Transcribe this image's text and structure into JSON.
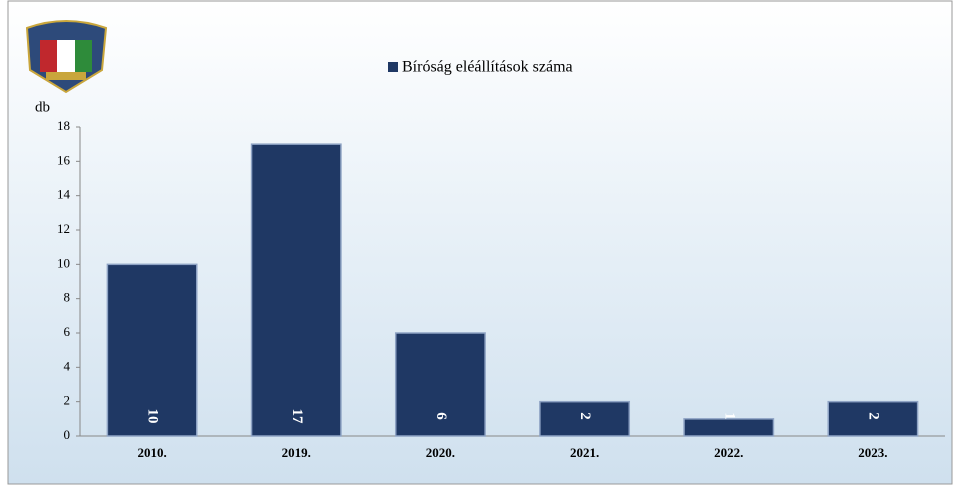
{
  "chart_data": {
    "type": "bar",
    "legend": "Bíróság eléállítások száma",
    "y_label": "db",
    "categories": [
      "2010.",
      "2019.",
      "2020.",
      "2021.",
      "2022.",
      "2023."
    ],
    "values": [
      10,
      17,
      6,
      2,
      1,
      2
    ],
    "color": "#1f3864",
    "ylim": [
      0,
      18
    ],
    "yticks": [
      0,
      2,
      4,
      6,
      8,
      10,
      12,
      14,
      16,
      18
    ]
  }
}
